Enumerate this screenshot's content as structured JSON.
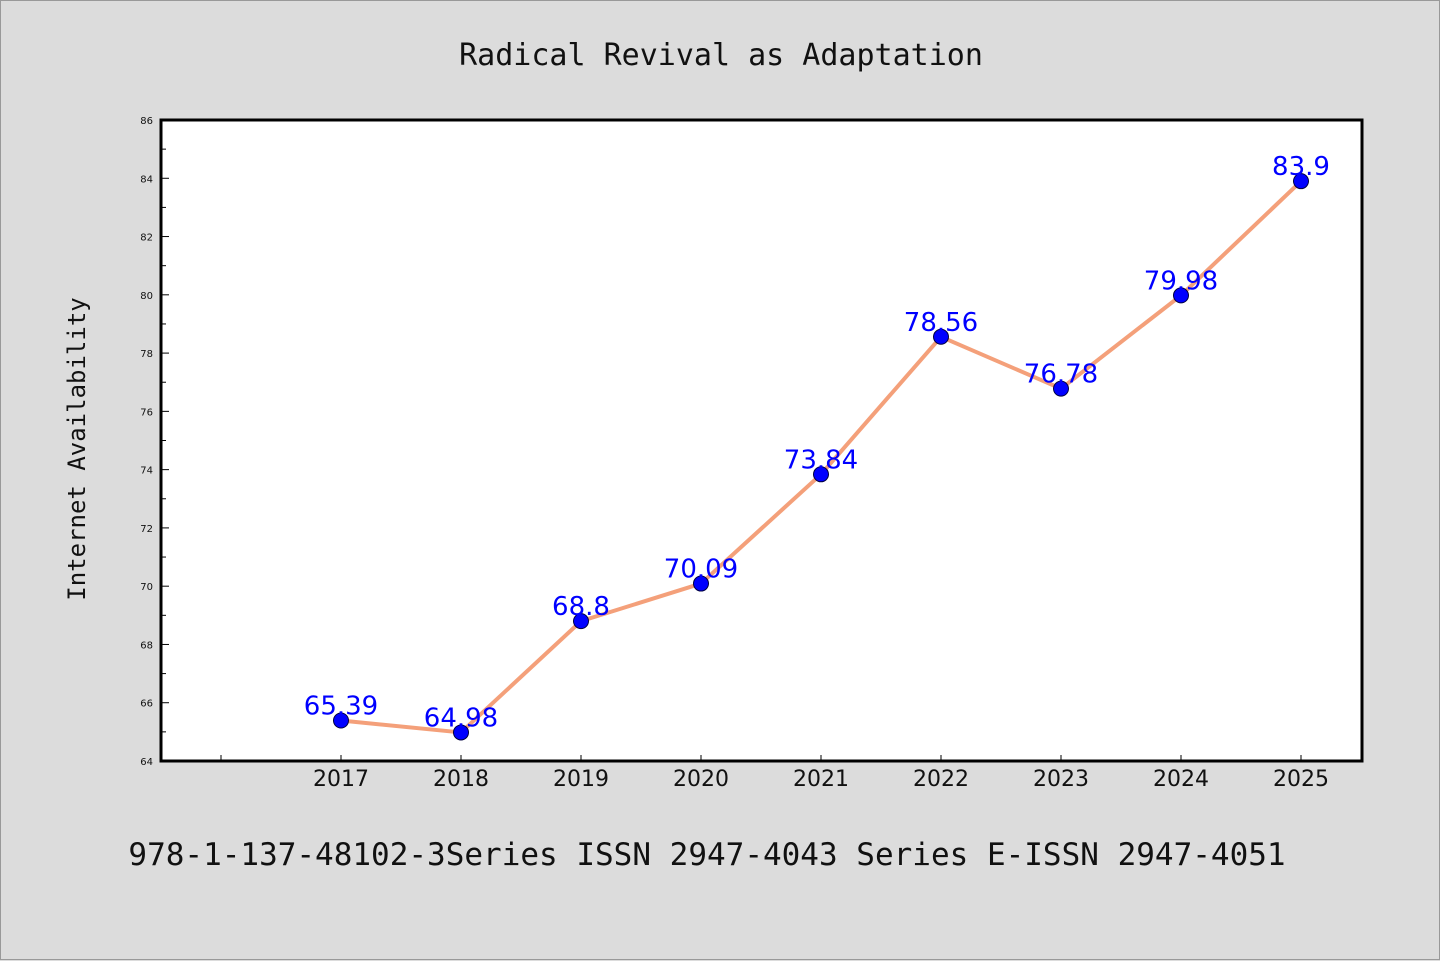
{
  "chart_data": {
    "type": "line",
    "title": "Radical Revival as Adaptation",
    "xlabel": "",
    "ylabel": "Internet Availability",
    "categories": [
      "2017",
      "2018",
      "2019",
      "2020",
      "2021",
      "2022",
      "2023",
      "2024",
      "2025"
    ],
    "series": [
      {
        "values": [
          65.39,
          64.98,
          68.8,
          70.09,
          73.84,
          78.56,
          76.78,
          79.98,
          83.9
        ],
        "data_labels": [
          "65.39",
          "64.98",
          "68.8",
          "70.09",
          "73.84",
          "78.56",
          "76.78",
          "79.98",
          "83.9"
        ]
      }
    ],
    "ylim": [
      64,
      86
    ],
    "y_ticks": [
      "64",
      "66",
      "68",
      "70",
      "72",
      "74",
      "76",
      "78",
      "80",
      "82",
      "84",
      "86"
    ],
    "grid": false,
    "colors": {
      "line": "#f4a07a",
      "marker": "#0000ff",
      "data_label": "#0000ff",
      "background": "#dcdcdc",
      "plot_background": "#ffffff"
    }
  },
  "footer": {
    "text": "978-1-137-48102-3Series ISSN 2947-4043 Series E-ISSN 2947-4051"
  }
}
